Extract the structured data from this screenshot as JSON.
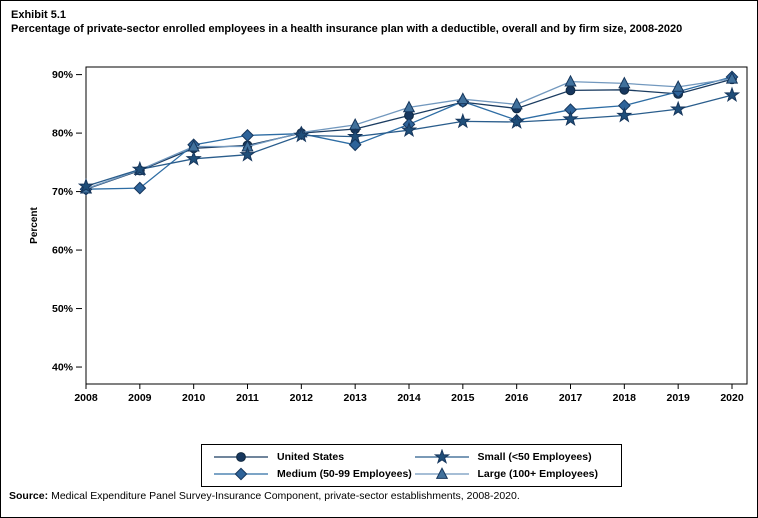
{
  "figure": {
    "exhibit_label": "Exhibit 5.1",
    "title": "Percentage of private-sector enrolled employees in a health insurance plan with a deductible, overall and by firm size, 2008-2020",
    "source_label": "Source:",
    "source_text": "Medical Expenditure Panel Survey-Insurance Component, private-sector establishments, 2008-2020."
  },
  "chart_data": {
    "type": "line",
    "title": "Percentage of private-sector enrolled employees in a health insurance plan with a deductible, overall and by firm size, 2008-2020",
    "ylabel": "Percent",
    "xlabel": "",
    "grid": false,
    "legend_position": "bottom",
    "x": [
      2008,
      2009,
      2010,
      2011,
      2012,
      2013,
      2014,
      2015,
      2016,
      2017,
      2018,
      2019,
      2020
    ],
    "xticklabels": [
      "2008",
      "2009",
      "2010",
      "2011",
      "2012",
      "2013",
      "2014",
      "2015",
      "2016",
      "2017",
      "2018",
      "2019",
      "2020"
    ],
    "ylim": [
      37.1,
      91.3
    ],
    "yticks": [
      40,
      50,
      60,
      70,
      80,
      90
    ],
    "ytick_labels": [
      "40%",
      "50%",
      "60%",
      "70%",
      "80%",
      "90%"
    ],
    "series": [
      {
        "name": "United States",
        "marker": "circle",
        "color": "#17375E",
        "edge": "#10283F",
        "line_color": "#1B3C61",
        "values": [
          70.4,
          73.6,
          77.4,
          77.9,
          80.0,
          80.7,
          83.0,
          85.3,
          84.2,
          87.3,
          87.4,
          86.7,
          89.2
        ]
      },
      {
        "name": "Small (<50 Employees)",
        "marker": "star",
        "color": "#1F4E79",
        "edge": "#16365C",
        "line_color": "#2A5D8C",
        "values": [
          70.9,
          73.8,
          75.6,
          76.3,
          79.6,
          79.4,
          80.5,
          82.0,
          81.9,
          82.4,
          83.0,
          84.1,
          86.5
        ]
      },
      {
        "name": "Medium (50-99 Employees)",
        "marker": "diamond",
        "color": "#2E6399",
        "edge": "#16365C",
        "line_color": "#2E6DA4",
        "values": [
          70.4,
          70.6,
          78.0,
          79.6,
          79.9,
          78.0,
          81.5,
          85.4,
          82.2,
          84.0,
          84.7,
          87.1,
          89.6
        ]
      },
      {
        "name": "Large (100+ Employees)",
        "marker": "triangle",
        "color": "#41719C",
        "edge": "#16365C",
        "line_color": "#7298BE",
        "values": [
          70.5,
          73.7,
          77.7,
          77.7,
          80.1,
          81.4,
          84.4,
          85.8,
          84.9,
          88.8,
          88.5,
          87.9,
          89.3
        ]
      }
    ],
    "draw_order": [
      0,
      2,
      3,
      1
    ]
  }
}
